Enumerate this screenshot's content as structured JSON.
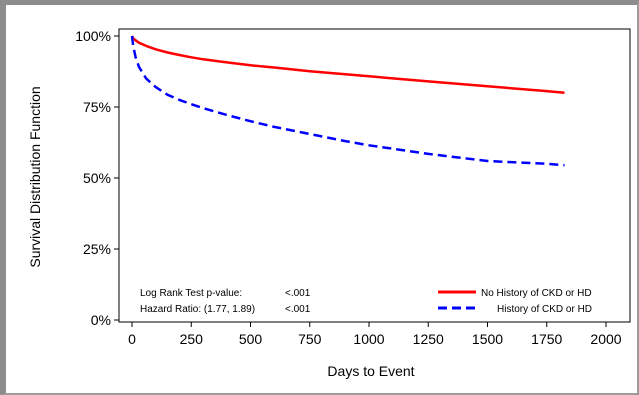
{
  "chart_data": {
    "type": "line",
    "title": "",
    "xlabel": "Days to Event",
    "ylabel": "Survival Distribution Function",
    "xlim": [
      0,
      2000
    ],
    "ylim": [
      0,
      100
    ],
    "x_ticks": [
      "0",
      "250",
      "500",
      "750",
      "1000",
      "1250",
      "1500",
      "1750",
      "2000"
    ],
    "y_ticks": [
      "0%",
      "25%",
      "50%",
      "75%",
      "100%"
    ],
    "grid": false,
    "series": [
      {
        "name": "No History of CKD or HD",
        "color": "#ff0000",
        "style": "solid",
        "x": [
          0,
          5,
          15,
          30,
          60,
          100,
          150,
          200,
          250,
          300,
          400,
          500,
          600,
          750,
          900,
          1000,
          1250,
          1500,
          1750,
          1825
        ],
        "y": [
          100,
          99.2,
          98.5,
          97.6,
          96.5,
          95.3,
          94.2,
          93.3,
          92.5,
          91.8,
          90.7,
          89.7,
          88.9,
          87.6,
          86.5,
          85.8,
          84.0,
          82.3,
          80.6,
          80.0
        ]
      },
      {
        "name": "History of CKD or HD",
        "color": "#0000ff",
        "style": "dashed",
        "x": [
          0,
          5,
          15,
          30,
          60,
          100,
          150,
          200,
          250,
          300,
          400,
          500,
          600,
          750,
          900,
          1000,
          1250,
          1500,
          1750,
          1825
        ],
        "y": [
          100,
          96.5,
          92.5,
          89.0,
          85.0,
          82.0,
          79.3,
          77.5,
          76.0,
          74.6,
          72.2,
          70.0,
          68.0,
          65.5,
          63.0,
          61.5,
          58.5,
          56.0,
          55.0,
          54.5
        ]
      }
    ],
    "annotations": {
      "line1_label": "Log Rank Test p-value:",
      "line1_value": "<.001",
      "line2_label": "Hazard Ratio: (1.77, 1.89)",
      "line2_value": "<.001"
    },
    "legend": {
      "placement": "bottom-right",
      "entries": [
        "No History of CKD or HD",
        "History of CKD or HD"
      ]
    }
  }
}
